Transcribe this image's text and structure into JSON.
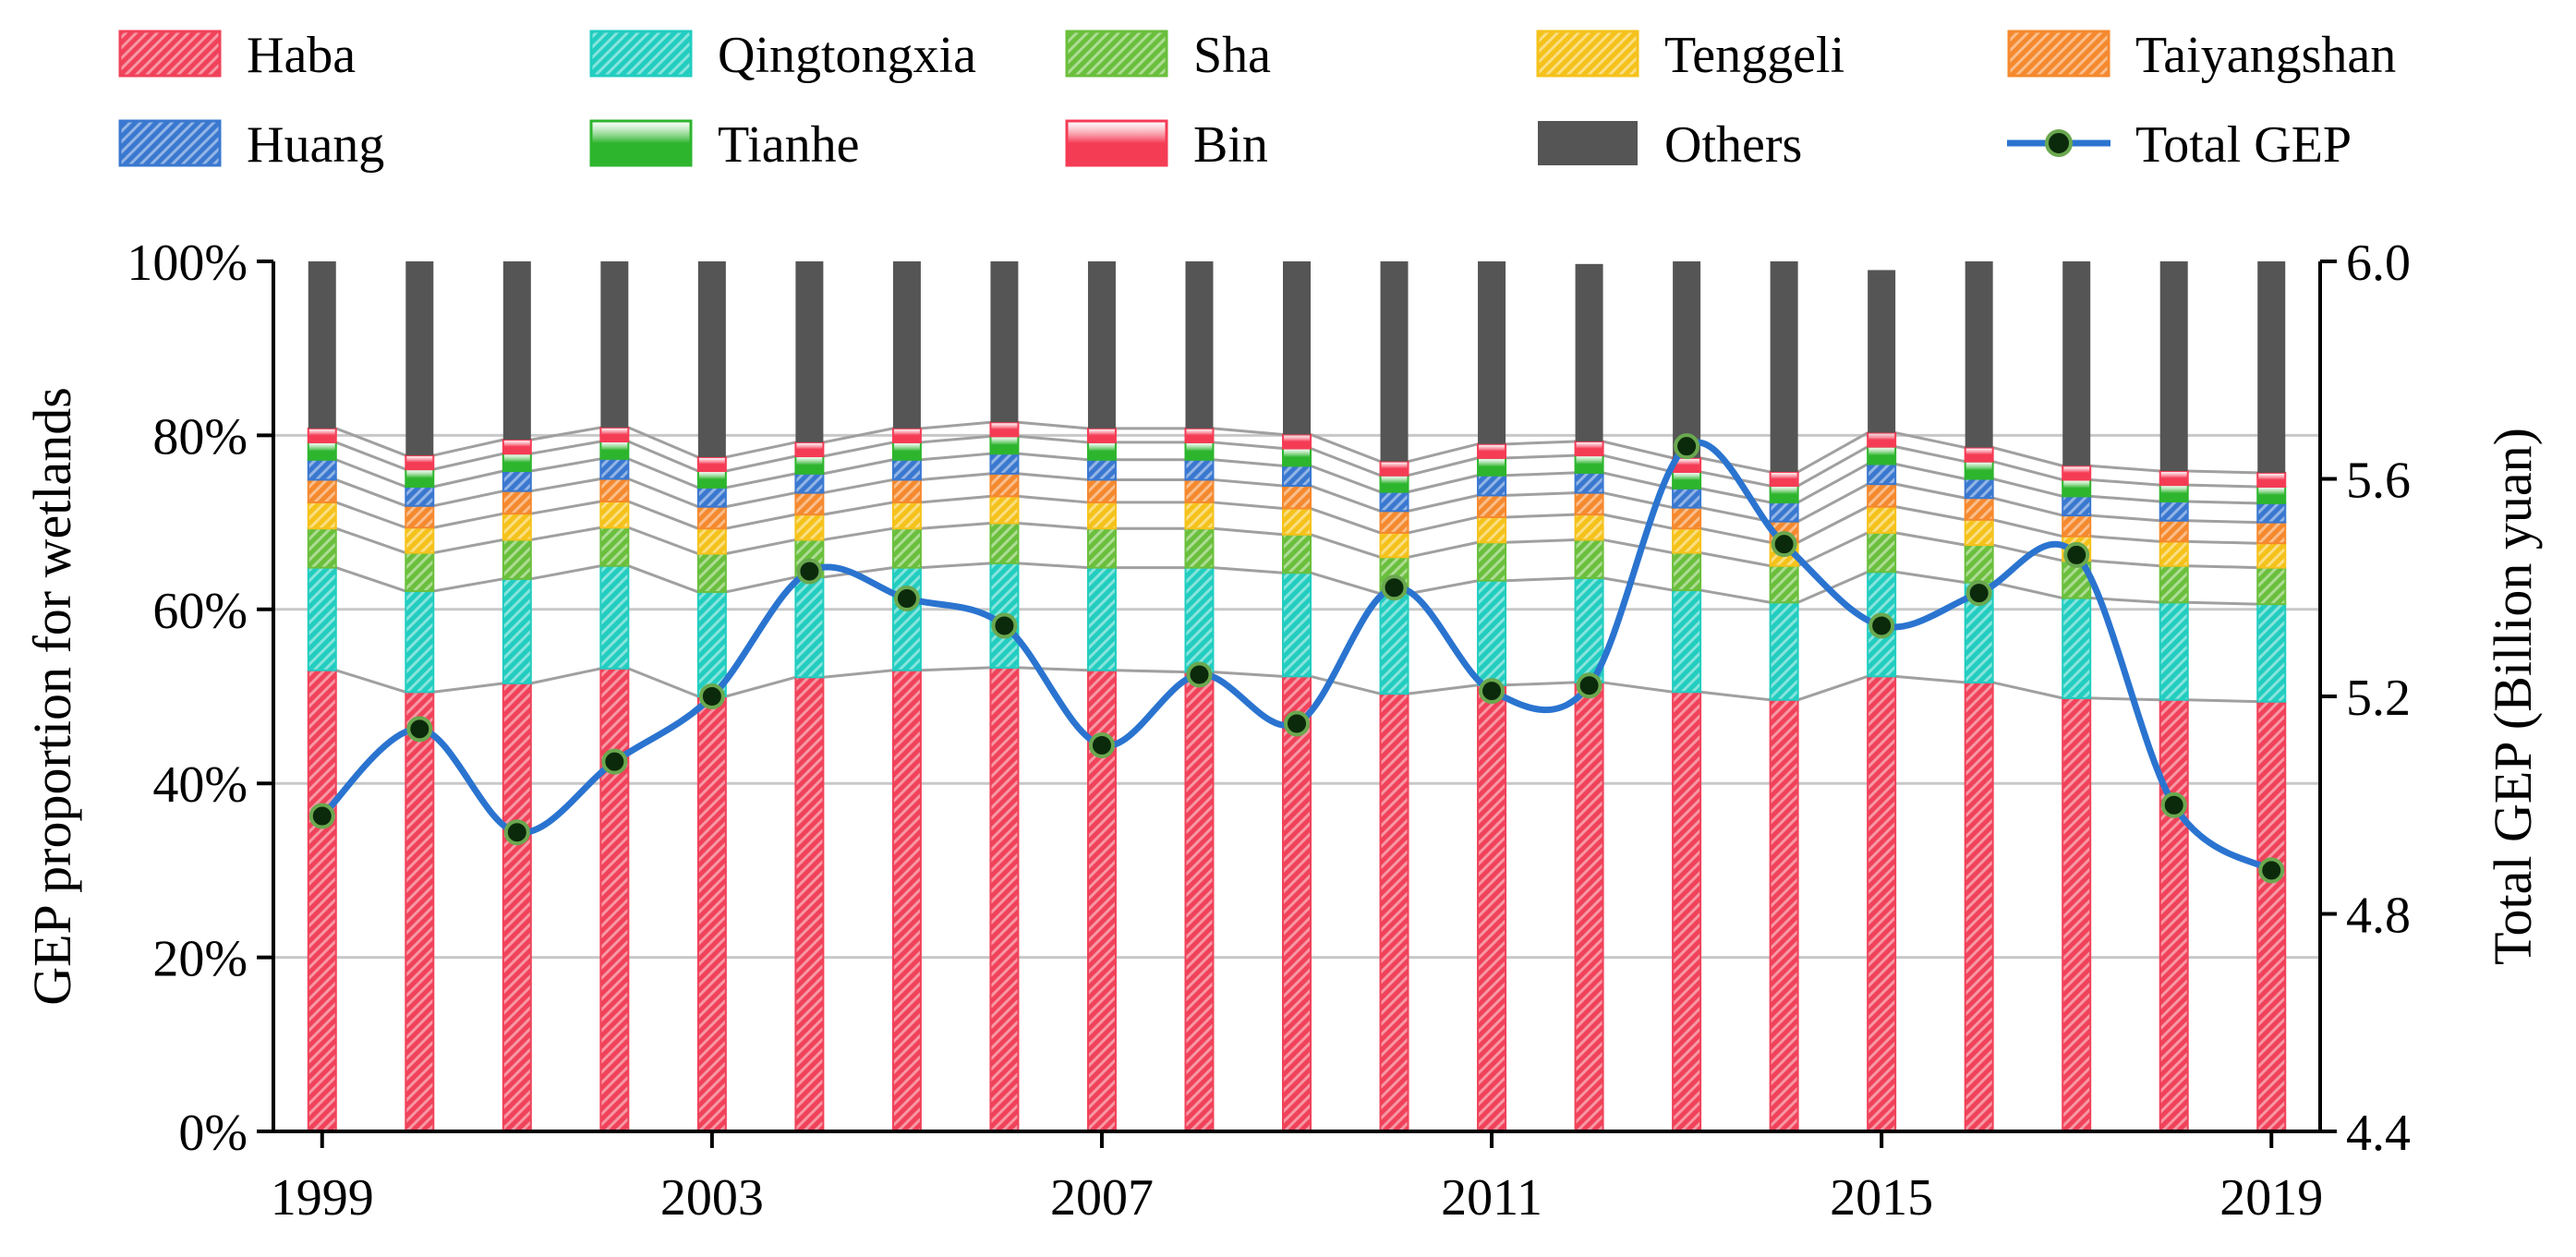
{
  "chart_data": {
    "type": "bar",
    "stacked": true,
    "percent_stacked": true,
    "title": "",
    "xlabel": "",
    "ylabel": "GEP proportion for wetlands",
    "y2label": "Total GEP (Billion yuan)",
    "ylim": [
      0,
      100
    ],
    "y2lim": [
      4.4,
      6.0
    ],
    "yticks": [
      "0%",
      "20%",
      "40%",
      "60%",
      "80%",
      "100%"
    ],
    "y2ticks": [
      "4.4",
      "4.8",
      "5.2",
      "5.6",
      "6.0"
    ],
    "xtick_labels": [
      "1999",
      "2003",
      "2007",
      "2011",
      "2015",
      "2019"
    ],
    "legend_position": "top",
    "grid": "horizontal",
    "categories": [
      "1999",
      "2000",
      "2001",
      "2002",
      "2003",
      "2004",
      "2005",
      "2006",
      "2007",
      "2008",
      "2009",
      "2010",
      "2011",
      "2012",
      "2013",
      "2014",
      "2015",
      "2016",
      "2017",
      "2018",
      "2019"
    ],
    "series": [
      {
        "name": "Haba",
        "color": "#f0425a",
        "values": [
          53.0,
          50.5,
          51.5,
          53.2,
          50.0,
          52.2,
          53.0,
          53.3,
          53.0,
          52.8,
          52.3,
          50.3,
          51.3,
          51.6,
          50.5,
          49.6,
          52.3,
          51.6,
          49.8,
          49.6,
          49.4
        ]
      },
      {
        "name": "Qingtongxia",
        "color": "#22cdc0",
        "values": [
          11.8,
          11.6,
          12.0,
          11.8,
          12.0,
          11.5,
          11.8,
          12.0,
          11.8,
          12.0,
          11.9,
          11.5,
          12.0,
          12.0,
          11.7,
          11.2,
          12.0,
          11.5,
          11.5,
          11.2,
          11.2
        ]
      },
      {
        "name": "Sha",
        "color": "#6abf3c",
        "values": [
          4.5,
          4.4,
          4.5,
          4.4,
          4.4,
          4.3,
          4.5,
          4.6,
          4.5,
          4.5,
          4.4,
          4.2,
          4.4,
          4.4,
          4.3,
          4.2,
          4.5,
          4.3,
          4.3,
          4.2,
          4.2
        ]
      },
      {
        "name": "Tenggeli",
        "color": "#f5c21b",
        "values": [
          3.0,
          2.9,
          3.0,
          3.0,
          2.9,
          2.9,
          3.0,
          3.1,
          3.0,
          3.0,
          3.0,
          2.8,
          2.9,
          2.9,
          2.8,
          2.7,
          3.0,
          2.9,
          2.8,
          2.8,
          2.8
        ]
      },
      {
        "name": "Taiyangshan",
        "color": "#f5892e",
        "values": [
          2.6,
          2.5,
          2.6,
          2.6,
          2.5,
          2.5,
          2.6,
          2.6,
          2.6,
          2.6,
          2.6,
          2.5,
          2.5,
          2.5,
          2.4,
          2.4,
          2.6,
          2.5,
          2.4,
          2.4,
          2.4
        ]
      },
      {
        "name": "Huang",
        "color": "#3a78d0",
        "values": [
          2.3,
          2.2,
          2.3,
          2.3,
          2.2,
          2.2,
          2.3,
          2.3,
          2.3,
          2.3,
          2.3,
          2.2,
          2.3,
          2.3,
          2.2,
          2.2,
          2.3,
          2.2,
          2.2,
          2.2,
          2.2
        ]
      },
      {
        "name": "Tianhe",
        "color": "#2eb52e",
        "values": [
          2.0,
          2.0,
          2.0,
          2.0,
          1.9,
          2.0,
          2.0,
          2.0,
          2.0,
          2.0,
          2.0,
          1.9,
          2.0,
          2.0,
          1.9,
          1.9,
          2.0,
          2.0,
          1.9,
          1.9,
          1.9
        ]
      },
      {
        "name": "Bin",
        "color": "#f53c55",
        "values": [
          1.6,
          1.6,
          1.6,
          1.6,
          1.6,
          1.6,
          1.6,
          1.6,
          1.6,
          1.6,
          1.6,
          1.6,
          1.6,
          1.6,
          1.6,
          1.6,
          1.6,
          1.6,
          1.6,
          1.6,
          1.6
        ]
      },
      {
        "name": "Others",
        "color": "#555555",
        "values": [
          19.2,
          22.3,
          20.5,
          19.1,
          22.5,
          20.8,
          19.2,
          18.5,
          19.2,
          19.2,
          19.9,
          23.0,
          21.0,
          20.4,
          22.6,
          24.2,
          18.7,
          21.4,
          23.5,
          24.1,
          24.3
        ]
      }
    ],
    "line_series": {
      "name": "Total GEP",
      "axis": "right",
      "color": "#2a74d0",
      "marker_fill": "#0b2a0b",
      "marker_edge": "#6aa84f",
      "values": [
        4.98,
        5.14,
        4.95,
        5.08,
        5.2,
        5.43,
        5.38,
        5.33,
        5.11,
        5.24,
        5.15,
        5.4,
        5.21,
        5.22,
        5.66,
        5.48,
        5.33,
        5.39,
        5.46,
        5.0,
        4.88
      ]
    }
  }
}
